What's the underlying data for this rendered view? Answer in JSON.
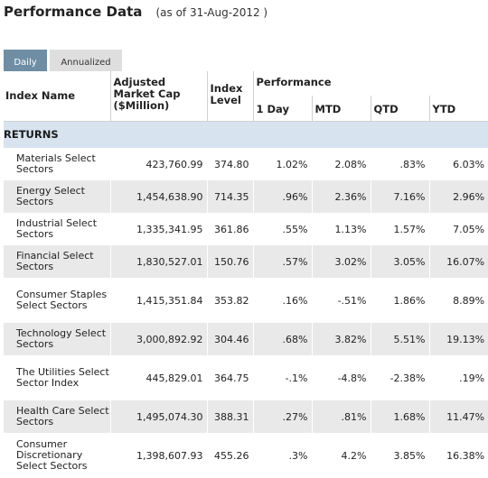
{
  "header": {
    "title": "Performance Data",
    "as_of": "(as of 31-Aug-2012 )"
  },
  "tabs": [
    {
      "label": "Daily",
      "active": true
    },
    {
      "label": "Annualized",
      "active": false
    }
  ],
  "table": {
    "columns": {
      "index_name": "Index Name",
      "market_cap": "Adjusted Market Cap ($Million)",
      "index_level": "Index Level",
      "performance": "Performance",
      "one_day": "1 Day",
      "mtd": "MTD",
      "qtd": "QTD",
      "ytd": "YTD"
    },
    "section_label": "RETURNS",
    "rows": [
      {
        "name": "Materials Select Sectors",
        "market_cap": "423,760.99",
        "level": "374.80",
        "one_day": "1.02%",
        "mtd": "2.08%",
        "qtd": ".83%",
        "ytd": "6.03%"
      },
      {
        "name": "Energy Select Sectors",
        "market_cap": "1,454,638.90",
        "level": "714.35",
        "one_day": ".96%",
        "mtd": "2.36%",
        "qtd": "7.16%",
        "ytd": "2.96%"
      },
      {
        "name": "Industrial Select Sectors",
        "market_cap": "1,335,341.95",
        "level": "361.86",
        "one_day": ".55%",
        "mtd": "1.13%",
        "qtd": "1.57%",
        "ytd": "7.05%"
      },
      {
        "name": "Financial Select Sectors",
        "market_cap": "1,830,527.01",
        "level": "150.76",
        "one_day": ".57%",
        "mtd": "3.02%",
        "qtd": "3.05%",
        "ytd": "16.07%"
      },
      {
        "name": "Consumer Staples Select Sectors",
        "market_cap": "1,415,351.84",
        "level": "353.82",
        "one_day": ".16%",
        "mtd": "-.51%",
        "qtd": "1.86%",
        "ytd": "8.89%"
      },
      {
        "name": "Technology Select Sectors",
        "market_cap": "3,000,892.92",
        "level": "304.46",
        "one_day": ".68%",
        "mtd": "3.82%",
        "qtd": "5.51%",
        "ytd": "19.13%"
      },
      {
        "name": "The Utilities Select Sector Index",
        "market_cap": "445,829.01",
        "level": "364.75",
        "one_day": "-.1%",
        "mtd": "-4.8%",
        "qtd": "-2.38%",
        "ytd": ".19%"
      },
      {
        "name": "Health Care Select Sectors",
        "market_cap": "1,495,074.30",
        "level": "388.31",
        "one_day": ".27%",
        "mtd": ".81%",
        "qtd": "1.68%",
        "ytd": "11.47%"
      },
      {
        "name": "Consumer Discretionary Select Sectors",
        "market_cap": "1,398,607.93",
        "level": "455.26",
        "one_day": ".3%",
        "mtd": "4.2%",
        "qtd": "3.85%",
        "ytd": "16.38%"
      }
    ]
  }
}
